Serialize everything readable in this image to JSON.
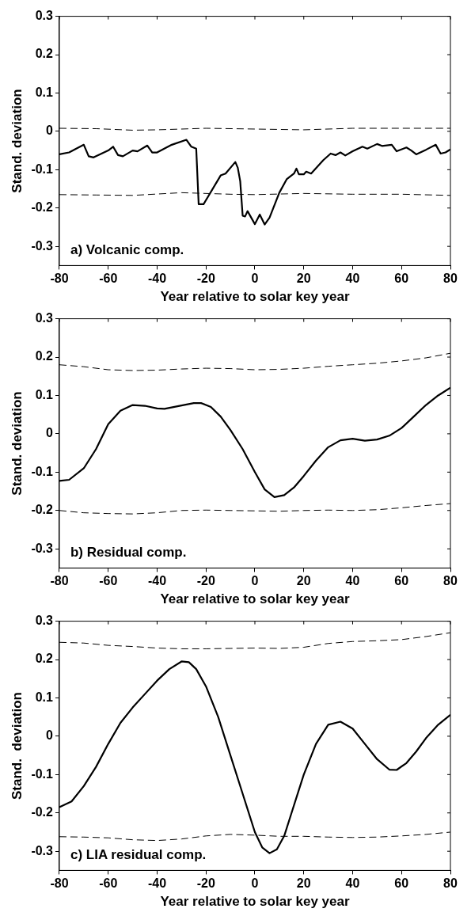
{
  "chart_data": [
    {
      "type": "line",
      "xlabel": "Year relative to solar key year",
      "ylabel": "Stand. deviation",
      "annotations": [
        "a) Volcanic comp."
      ],
      "xlim": [
        -80,
        80
      ],
      "xticks": [
        -80,
        -60,
        -40,
        -20,
        0,
        20,
        40,
        60,
        80
      ],
      "ylim": [
        -0.35,
        0.3
      ],
      "yticks": [
        -0.3,
        -0.2,
        -0.1,
        0,
        0.1,
        0.2,
        0.3
      ],
      "grid": false,
      "legend": false,
      "series": [
        {
          "color": "#000000",
          "line_style": "solid",
          "x": [
            -80,
            -76,
            -70,
            -68,
            -66,
            -60,
            -58,
            -56,
            -54,
            -50,
            -48,
            -44,
            -42,
            -40,
            -34,
            -28,
            -26,
            -24,
            -23,
            -21,
            -14,
            -12,
            -8,
            -7,
            -6,
            -5,
            -4,
            -3,
            0,
            2,
            4,
            6,
            10,
            13,
            16,
            17,
            18,
            20,
            21,
            23,
            28,
            31,
            33,
            35,
            37,
            40,
            44,
            46,
            50,
            52,
            56,
            58,
            62,
            64,
            66,
            70,
            74,
            76,
            78,
            80
          ],
          "values": [
            -0.06,
            -0.055,
            -0.035,
            -0.065,
            -0.068,
            -0.05,
            -0.04,
            -0.062,
            -0.065,
            -0.05,
            -0.052,
            -0.037,
            -0.055,
            -0.055,
            -0.035,
            -0.022,
            -0.04,
            -0.045,
            -0.19,
            -0.19,
            -0.115,
            -0.11,
            -0.08,
            -0.095,
            -0.13,
            -0.22,
            -0.222,
            -0.208,
            -0.242,
            -0.217,
            -0.243,
            -0.225,
            -0.16,
            -0.125,
            -0.11,
            -0.097,
            -0.112,
            -0.112,
            -0.105,
            -0.11,
            -0.075,
            -0.058,
            -0.062,
            -0.055,
            -0.063,
            -0.052,
            -0.04,
            -0.045,
            -0.033,
            -0.038,
            -0.035,
            -0.052,
            -0.042,
            -0.05,
            -0.06,
            -0.048,
            -0.035,
            -0.058,
            -0.055,
            -0.047
          ]
        },
        {
          "color": "#000000",
          "line_style": "dashed",
          "x": [
            -80,
            -65,
            -50,
            -40,
            -20,
            0,
            20,
            40,
            60,
            80
          ],
          "values": [
            0.008,
            0.007,
            0.003,
            0.004,
            0.008,
            0.006,
            0.004,
            0.008,
            0.008,
            0.008
          ]
        },
        {
          "color": "#000000",
          "line_style": "dashed",
          "x": [
            -80,
            -65,
            -50,
            -30,
            -10,
            0,
            20,
            40,
            60,
            80
          ],
          "values": [
            -0.165,
            -0.166,
            -0.167,
            -0.16,
            -0.164,
            -0.165,
            -0.162,
            -0.164,
            -0.164,
            -0.167
          ]
        }
      ]
    },
    {
      "type": "line",
      "xlabel": "Year relative to solar key year",
      "ylabel": "Stand. deviation",
      "annotations": [
        "b) Residual comp."
      ],
      "xlim": [
        -80,
        80
      ],
      "xticks": [
        -80,
        -60,
        -40,
        -20,
        0,
        20,
        40,
        60,
        80
      ],
      "ylim": [
        -0.35,
        0.3
      ],
      "yticks": [
        -0.3,
        -0.2,
        -0.1,
        0,
        0.1,
        0.2,
        0.3
      ],
      "grid": false,
      "legend": false,
      "series": [
        {
          "color": "#000000",
          "line_style": "solid",
          "x": [
            -80,
            -76,
            -70,
            -65,
            -60,
            -55,
            -50,
            -45,
            -40,
            -37,
            -30,
            -25,
            -22,
            -18,
            -14,
            -10,
            -5,
            0,
            4,
            8,
            12,
            16,
            20,
            25,
            30,
            35,
            40,
            45,
            50,
            55,
            60,
            65,
            70,
            75,
            80
          ],
          "values": [
            -0.123,
            -0.12,
            -0.09,
            -0.04,
            0.025,
            0.06,
            0.075,
            0.073,
            0.066,
            0.065,
            0.074,
            0.08,
            0.08,
            0.07,
            0.045,
            0.01,
            -0.04,
            -0.1,
            -0.145,
            -0.165,
            -0.16,
            -0.14,
            -0.11,
            -0.07,
            -0.035,
            -0.017,
            -0.013,
            -0.018,
            -0.015,
            -0.005,
            0.015,
            0.045,
            0.075,
            0.1,
            0.12
          ]
        },
        {
          "color": "#000000",
          "line_style": "dashed",
          "x": [
            -80,
            -70,
            -60,
            -50,
            -40,
            -30,
            -20,
            -10,
            0,
            10,
            20,
            30,
            40,
            50,
            60,
            70,
            80
          ],
          "values": [
            0.18,
            0.175,
            0.167,
            0.165,
            0.166,
            0.169,
            0.171,
            0.17,
            0.167,
            0.168,
            0.171,
            0.176,
            0.18,
            0.184,
            0.19,
            0.198,
            0.21
          ]
        },
        {
          "color": "#000000",
          "line_style": "dashed",
          "x": [
            -80,
            -70,
            -60,
            -50,
            -40,
            -30,
            -20,
            -10,
            0,
            10,
            20,
            30,
            40,
            50,
            60,
            70,
            80
          ],
          "values": [
            -0.2,
            -0.206,
            -0.208,
            -0.209,
            -0.206,
            -0.2,
            -0.199,
            -0.2,
            -0.201,
            -0.202,
            -0.2,
            -0.199,
            -0.2,
            -0.198,
            -0.193,
            -0.187,
            -0.182
          ]
        }
      ]
    },
    {
      "type": "line",
      "xlabel": "Year relative to solar key year",
      "ylabel": "Stand.  deviation",
      "annotations": [
        "c) LIA residual comp."
      ],
      "xlim": [
        -80,
        80
      ],
      "xticks": [
        -80,
        -60,
        -40,
        -20,
        0,
        20,
        40,
        60,
        80
      ],
      "ylim": [
        -0.35,
        0.3
      ],
      "yticks": [
        -0.3,
        -0.2,
        -0.1,
        0,
        0.1,
        0.2,
        0.3
      ],
      "grid": false,
      "legend": false,
      "series": [
        {
          "color": "#000000",
          "line_style": "solid",
          "x": [
            -80,
            -75,
            -70,
            -65,
            -60,
            -55,
            -50,
            -45,
            -40,
            -35,
            -30,
            -27,
            -24,
            -20,
            -15,
            -10,
            -5,
            0,
            3,
            6,
            9,
            12,
            15,
            20,
            25,
            30,
            35,
            40,
            45,
            50,
            55,
            58,
            62,
            66,
            70,
            75,
            80
          ],
          "values": [
            -0.185,
            -0.17,
            -0.13,
            -0.08,
            -0.02,
            0.035,
            0.075,
            0.11,
            0.145,
            0.175,
            0.195,
            0.193,
            0.175,
            0.13,
            0.05,
            -0.05,
            -0.15,
            -0.25,
            -0.29,
            -0.305,
            -0.295,
            -0.26,
            -0.2,
            -0.1,
            -0.02,
            0.03,
            0.038,
            0.02,
            -0.02,
            -0.06,
            -0.087,
            -0.088,
            -0.07,
            -0.04,
            -0.005,
            0.03,
            0.056
          ]
        },
        {
          "color": "#000000",
          "line_style": "dashed",
          "x": [
            -80,
            -70,
            -60,
            -50,
            -40,
            -30,
            -20,
            -10,
            0,
            10,
            20,
            30,
            40,
            50,
            60,
            70,
            80
          ],
          "values": [
            0.245,
            0.243,
            0.237,
            0.234,
            0.23,
            0.228,
            0.228,
            0.229,
            0.23,
            0.229,
            0.232,
            0.242,
            0.247,
            0.249,
            0.252,
            0.26,
            0.27
          ]
        },
        {
          "color": "#000000",
          "line_style": "dashed",
          "x": [
            -80,
            -70,
            -60,
            -50,
            -40,
            -30,
            -20,
            -10,
            0,
            10,
            20,
            30,
            40,
            50,
            60,
            70,
            80
          ],
          "values": [
            -0.262,
            -0.263,
            -0.265,
            -0.27,
            -0.272,
            -0.268,
            -0.26,
            -0.256,
            -0.258,
            -0.261,
            -0.261,
            -0.263,
            -0.264,
            -0.263,
            -0.26,
            -0.256,
            -0.25
          ]
        }
      ]
    }
  ]
}
